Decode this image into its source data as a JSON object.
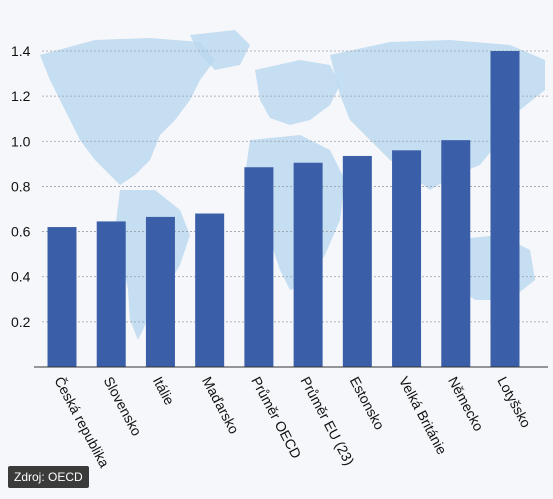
{
  "colors": {
    "bar": "#3a5fa8",
    "map": "#b9d7ef",
    "grid": "#9aa0a6",
    "background": "#f6f7fb"
  },
  "source": "Zdroj: OECD",
  "chart_data": {
    "type": "bar",
    "categories": [
      "Česká republika",
      "Slovensko",
      "Itálie",
      "Maďarsko",
      "Průměr OECD",
      "Průměr EU (23)",
      "Estonsko",
      "Velká Británie",
      "Německo",
      "Lotyšsko"
    ],
    "values": [
      0.62,
      0.645,
      0.665,
      0.68,
      0.885,
      0.905,
      0.935,
      0.96,
      1.005,
      1.4
    ],
    "yticks": [
      0.2,
      0.4,
      0.6,
      0.8,
      1.0,
      1.2,
      1.4
    ],
    "ytick_labels": [
      "0.2",
      "0.4",
      "0.6",
      "0.8",
      "1.0",
      "1.2",
      "1.4"
    ],
    "ylim": [
      0,
      1.4
    ],
    "grid": true,
    "title": "",
    "xlabel": "",
    "ylabel": ""
  }
}
